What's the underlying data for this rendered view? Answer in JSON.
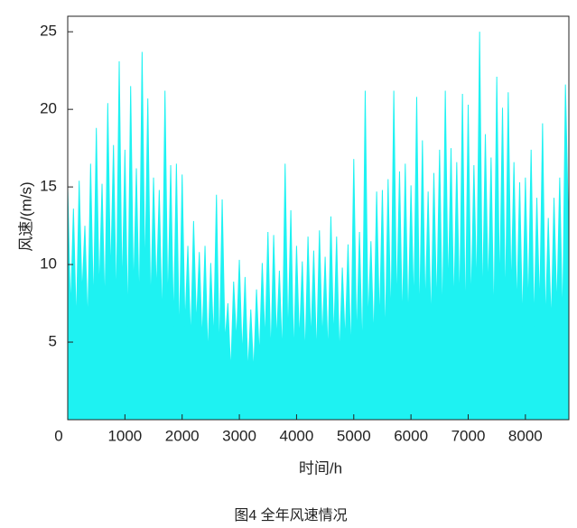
{
  "chart_data": {
    "type": "area",
    "caption": "图4 全年风速情况",
    "xlabel": "时间/h",
    "ylabel": "风速/(m/s)",
    "color": "#1ef2f2",
    "xlim": [
      0,
      8760
    ],
    "ylim": [
      0,
      26
    ],
    "xticks": [
      0,
      1000,
      2000,
      3000,
      4000,
      5000,
      6000,
      7000,
      8000
    ],
    "yticks": [
      5,
      10,
      15,
      20,
      25
    ],
    "x": [
      0,
      50,
      100,
      150,
      200,
      250,
      300,
      350,
      400,
      450,
      500,
      550,
      600,
      650,
      700,
      750,
      800,
      850,
      900,
      950,
      1000,
      1050,
      1100,
      1150,
      1200,
      1250,
      1300,
      1350,
      1400,
      1450,
      1500,
      1550,
      1600,
      1650,
      1700,
      1750,
      1800,
      1850,
      1900,
      1950,
      2000,
      2050,
      2100,
      2150,
      2200,
      2250,
      2300,
      2350,
      2400,
      2450,
      2500,
      2550,
      2600,
      2650,
      2700,
      2750,
      2800,
      2850,
      2900,
      2950,
      3000,
      3050,
      3100,
      3150,
      3200,
      3250,
      3300,
      3350,
      3400,
      3450,
      3500,
      3550,
      3600,
      3650,
      3700,
      3750,
      3800,
      3850,
      3900,
      3950,
      4000,
      4050,
      4100,
      4150,
      4200,
      4250,
      4300,
      4350,
      4400,
      4450,
      4500,
      4550,
      4600,
      4650,
      4700,
      4750,
      4800,
      4850,
      4900,
      4950,
      5000,
      5050,
      5100,
      5150,
      5200,
      5250,
      5300,
      5350,
      5400,
      5450,
      5500,
      5550,
      5600,
      5650,
      5700,
      5750,
      5800,
      5850,
      5900,
      5950,
      6000,
      6050,
      6100,
      6150,
      6200,
      6250,
      6300,
      6350,
      6400,
      6450,
      6500,
      6550,
      6600,
      6650,
      6700,
      6750,
      6800,
      6850,
      6900,
      6950,
      7000,
      7050,
      7100,
      7150,
      7200,
      7250,
      7300,
      7350,
      7400,
      7450,
      7500,
      7550,
      7600,
      7650,
      7700,
      7750,
      7800,
      7850,
      7900,
      7950,
      8000,
      8050,
      8100,
      8150,
      8200,
      8250,
      8300,
      8350,
      8400,
      8450,
      8500,
      8550,
      8600,
      8650,
      8700,
      8750
    ],
    "values": [
      14.9,
      7,
      13.6,
      6,
      15.4,
      8,
      12.5,
      6,
      16.5,
      7,
      18.8,
      8,
      15.2,
      7,
      20.4,
      9,
      17.7,
      7,
      23.1,
      8,
      17.4,
      6,
      21.5,
      8,
      16.2,
      7,
      23.7,
      9,
      20.7,
      7,
      15.6,
      8,
      14.8,
      6,
      21.2,
      7,
      16.4,
      6,
      16.5,
      5,
      15.8,
      6,
      11.2,
      5,
      12.8,
      6,
      10.8,
      5,
      11.2,
      4,
      10.1,
      5,
      14.5,
      4,
      14.2,
      5,
      7.5,
      3,
      8.9,
      5,
      10.3,
      4,
      9.2,
      3,
      7.1,
      3,
      8.4,
      4,
      10.1,
      5,
      12.1,
      4,
      11.9,
      5,
      9.6,
      4,
      16.5,
      5,
      13.5,
      4,
      11.2,
      5,
      10.2,
      4,
      11.8,
      5,
      10.9,
      4,
      12.2,
      5,
      10.5,
      4,
      13.1,
      5,
      11.8,
      4,
      9.8,
      5,
      11.3,
      4,
      16.8,
      5,
      12.1,
      4,
      21.2,
      6,
      11.5,
      5,
      14.7,
      6,
      14.8,
      5,
      15.5,
      6,
      21.2,
      7,
      16.0,
      6,
      16.5,
      6,
      15.1,
      7,
      20.8,
      6,
      18.0,
      7,
      14.7,
      6,
      15.9,
      7,
      17.4,
      6,
      21.2,
      8,
      17.5,
      7,
      16.6,
      7,
      21.0,
      6,
      20.3,
      7,
      16.4,
      8,
      25.0,
      7,
      18.4,
      8,
      16.9,
      6,
      22.1,
      8,
      20.1,
      7,
      21.1,
      8,
      16.6,
      7,
      15.3,
      6,
      15.6,
      7,
      17.4,
      6,
      14.3,
      7,
      19.1,
      6,
      13.0,
      6,
      14.3,
      7,
      15.6,
      6,
      21.6,
      13
    ]
  }
}
